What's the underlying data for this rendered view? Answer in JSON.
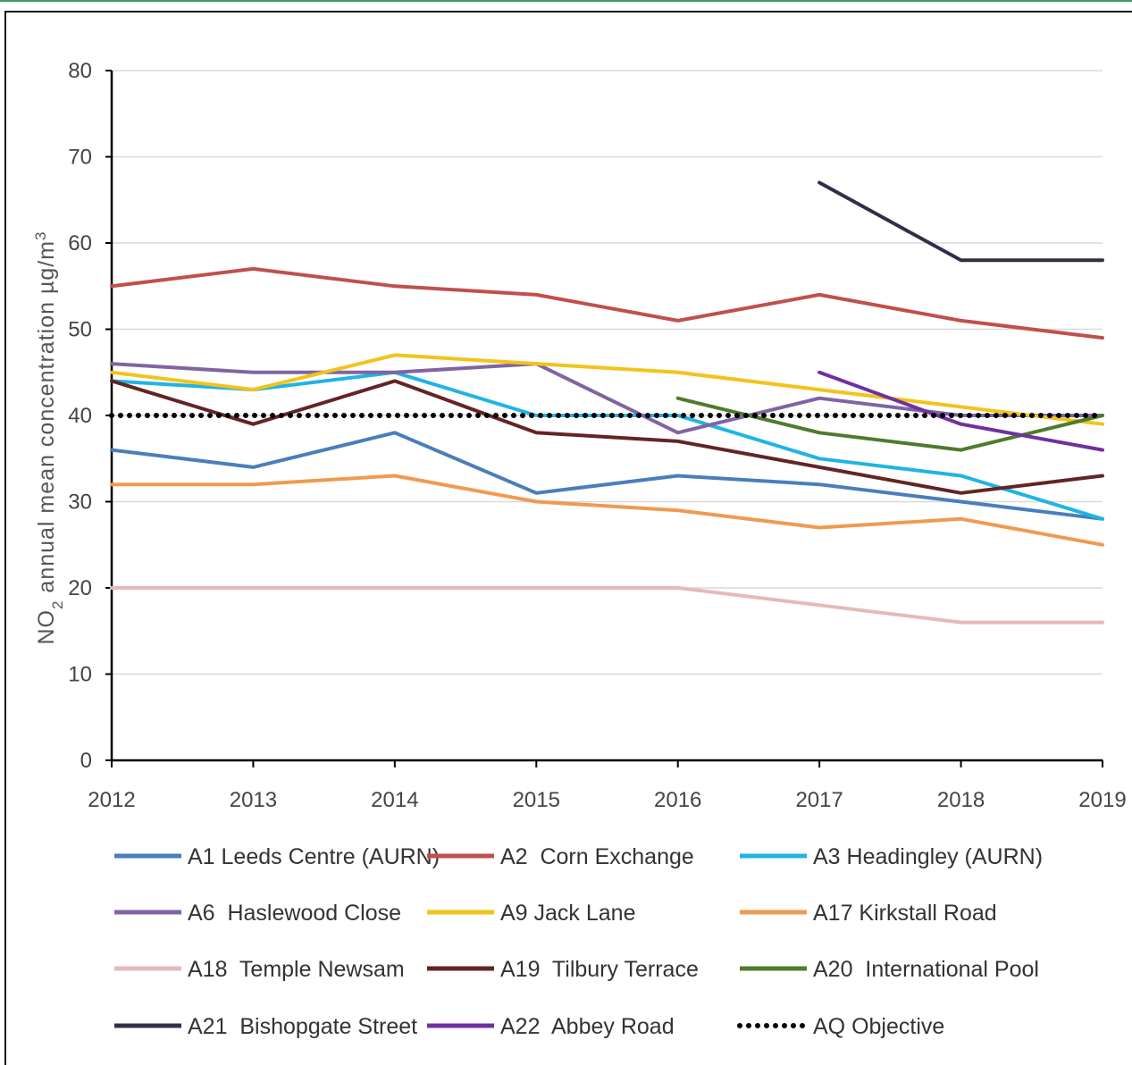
{
  "chart_data": {
    "type": "line",
    "title": "",
    "xlabel": "",
    "ylabel_parts": [
      "NO",
      "2",
      " annual mean concentration µg/m",
      "3"
    ],
    "x": [
      2012,
      2013,
      2014,
      2015,
      2016,
      2017,
      2018,
      2019
    ],
    "xtick_labels": [
      "2012",
      "2013",
      "2014",
      "2015",
      "2016",
      "2017",
      "2018",
      "2019"
    ],
    "ylim": [
      0,
      80
    ],
    "yticks": [
      0,
      10,
      20,
      30,
      40,
      50,
      60,
      70,
      80
    ],
    "grid": true,
    "legend_position": "bottom",
    "series": [
      {
        "name": "A1 Leeds Centre (AURN)",
        "color": "#4a7ebb",
        "values": [
          36,
          34,
          38,
          31,
          33,
          32,
          30,
          28
        ]
      },
      {
        "name": "A2  Corn Exchange",
        "color": "#c0504d",
        "values": [
          55,
          57,
          55,
          54,
          51,
          54,
          51,
          49
        ]
      },
      {
        "name": "A3 Headingley (AURN)",
        "color": "#1fb4e3",
        "values": [
          44,
          43,
          45,
          40,
          40,
          35,
          33,
          28
        ]
      },
      {
        "name": "A6  Haslewood Close",
        "color": "#8064a2",
        "values": [
          46,
          45,
          45,
          46,
          38,
          42,
          40,
          40
        ]
      },
      {
        "name": "A9 Jack Lane",
        "color": "#f2c31a",
        "values": [
          45,
          43,
          47,
          46,
          45,
          43,
          41,
          39
        ]
      },
      {
        "name": "A17 Kirkstall Road",
        "color": "#f09a50",
        "values": [
          32,
          32,
          33,
          30,
          29,
          27,
          28,
          25
        ]
      },
      {
        "name": "A18  Temple Newsam",
        "color": "#e6b9b8",
        "values": [
          20,
          20,
          20,
          20,
          20,
          18,
          16,
          16
        ]
      },
      {
        "name": "A19  Tilbury Terrace",
        "color": "#632523",
        "values": [
          44,
          39,
          44,
          38,
          37,
          34,
          31,
          33
        ]
      },
      {
        "name": "A20  International Pool",
        "color": "#4f7b2c",
        "values": [
          null,
          null,
          null,
          null,
          42,
          38,
          36,
          40
        ]
      },
      {
        "name": "A21  Bishopgate Street",
        "color": "#302f47",
        "values": [
          null,
          null,
          null,
          null,
          null,
          67,
          58,
          58
        ]
      },
      {
        "name": "A22  Abbey Road",
        "color": "#7030a0",
        "values": [
          null,
          null,
          null,
          null,
          null,
          45,
          39,
          36
        ]
      },
      {
        "name": "AQ Objective",
        "color": "#000000",
        "dotted": true,
        "values": [
          40,
          40,
          40,
          40,
          40,
          40,
          40,
          40
        ]
      }
    ]
  }
}
